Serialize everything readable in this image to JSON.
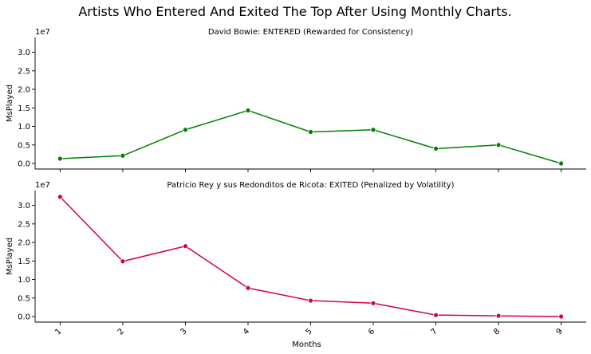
{
  "figure": {
    "title": "Artists Who Entered And Exited The Top After Using Monthly Charts."
  },
  "chart_data": [
    {
      "type": "line",
      "title": "David Bowie: ENTERED (Rewarded for Consistency)",
      "xlabel": "",
      "ylabel": "MsPlayed",
      "y_offset_label": "1e7",
      "x": [
        1,
        2,
        3,
        4,
        5,
        6,
        7,
        8,
        9
      ],
      "x_tick_labels_visible": false,
      "y_ticks": [
        0,
        0.5,
        1.0,
        1.5,
        2.0,
        2.5,
        3.0
      ],
      "y_tick_labels": [
        "0.0",
        "0.5",
        "1.0",
        "1.5",
        "2.0",
        "2.5",
        "3.0"
      ],
      "ylim": [
        -0.15,
        3.4
      ],
      "series": [
        {
          "color": "#008000",
          "values": [
            0.13,
            0.21,
            0.91,
            1.43,
            0.85,
            0.91,
            0.4,
            0.5,
            0.0
          ]
        }
      ]
    },
    {
      "type": "line",
      "title": "Patricio Rey y sus Redonditos de Ricota: EXITED (Penalized by Volatility)",
      "xlabel": "Months",
      "ylabel": "MsPlayed",
      "y_offset_label": "1e7",
      "x": [
        1,
        2,
        3,
        4,
        5,
        6,
        7,
        8,
        9
      ],
      "x_tick_labels": [
        "1",
        "2",
        "3",
        "4",
        "5",
        "6",
        "7",
        "8",
        "9"
      ],
      "x_tick_labels_visible": true,
      "y_ticks": [
        0,
        0.5,
        1.0,
        1.5,
        2.0,
        2.5,
        3.0
      ],
      "y_tick_labels": [
        "0.0",
        "0.5",
        "1.0",
        "1.5",
        "2.0",
        "2.5",
        "3.0"
      ],
      "ylim": [
        -0.15,
        3.4
      ],
      "series": [
        {
          "color": "#d0063c",
          "values": [
            3.23,
            1.49,
            1.9,
            0.77,
            0.43,
            0.36,
            0.04,
            0.02,
            0.0
          ]
        }
      ]
    }
  ]
}
